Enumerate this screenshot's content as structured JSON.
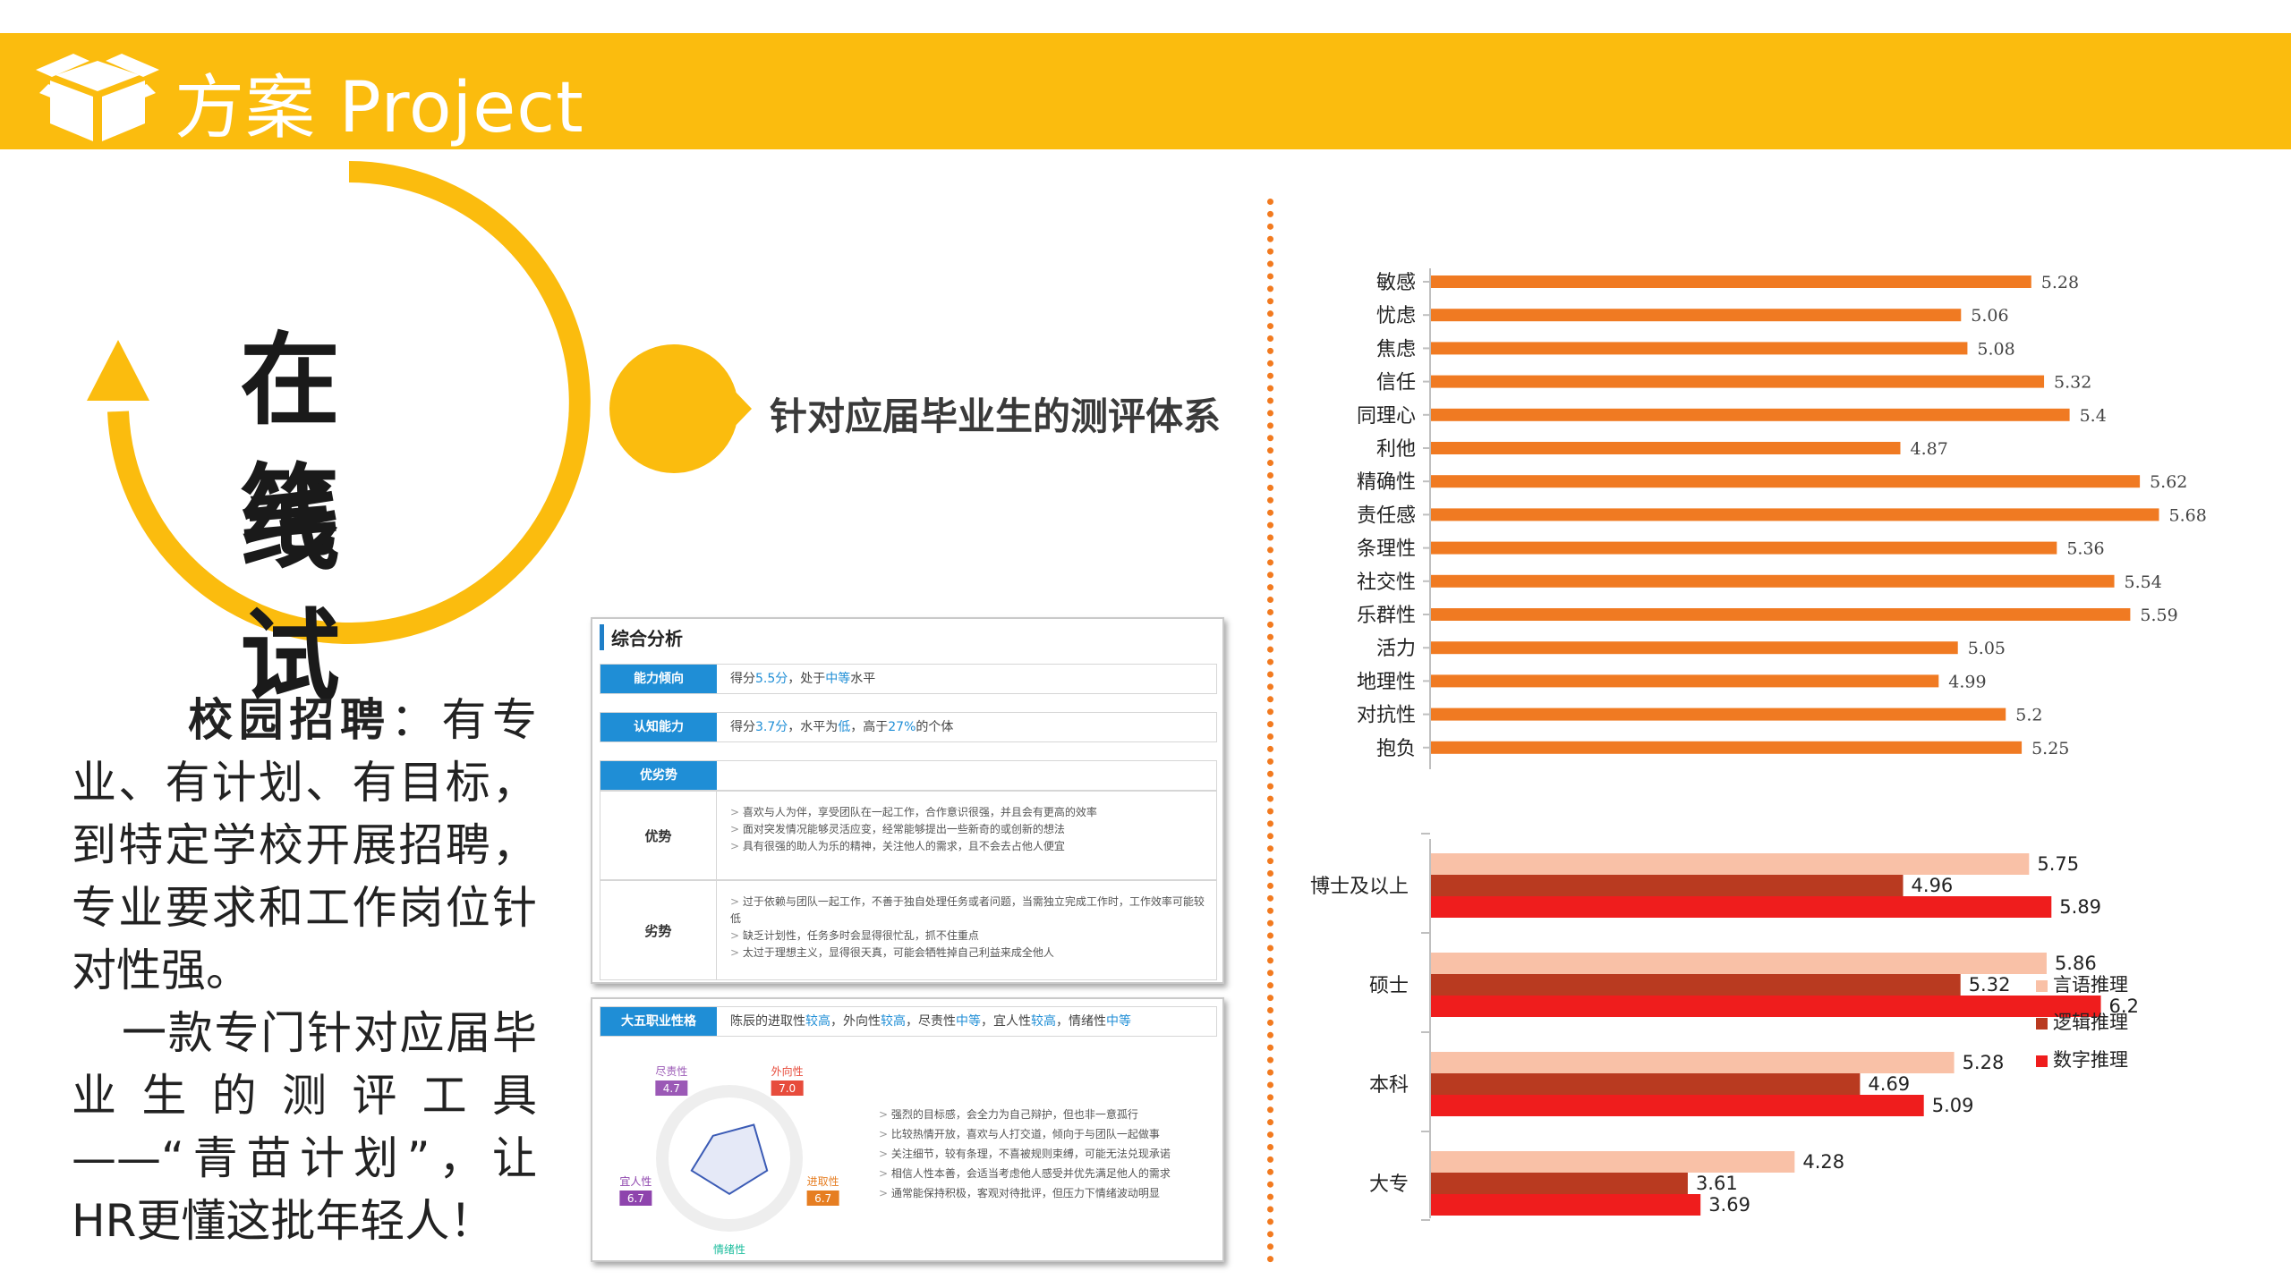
{
  "header": {
    "title": "方案 Project"
  },
  "hero": {
    "line1": "在线",
    "line2": "笔试",
    "bubble_caption": "针对应届毕业生的测评体系"
  },
  "description": {
    "p1_bold": "校园招聘",
    "p1_rest": "：有专业、有计划、有目标，到特定学校开展招聘，专业要求和工作岗位针对性强。",
    "p2": "一款专门针对应届毕业生的测评工具——“青苗计划”，让HR更懂这批年轻人！"
  },
  "report1": {
    "section_title": "综合分析",
    "ability_tag": "能力倾向",
    "ability_pre": "得分",
    "ability_score": "5.5分",
    "ability_mid": "，处于",
    "ability_level": "中等",
    "ability_post": "水平",
    "cognitive_tag": "认知能力",
    "cog_pre": "得分",
    "cog_score": "3.7分",
    "cog_mid": "，水平为",
    "cog_level": "低",
    "cog_mid2": "，高于",
    "cog_pct": "27%",
    "cog_post": "的个体",
    "sw_tag": "优劣势",
    "strength_label": "优势",
    "strengths": [
      "喜欢与人为伴，享受团队在一起工作，合作意识很强，并且会有更高的效率",
      "面对突发情况能够灵活应变，经常能够提出一些新奇的或创新的想法",
      "具有很强的助人为乐的精神，关注他人的需求，且不会去占他人便宜"
    ],
    "weakness_label": "劣势",
    "weaknesses": [
      "过于依赖与团队一起工作，不善于独自处理任务或者问题，当需独立完成工作时，工作效率可能较低",
      "缺乏计划性，任务多时会显得很忙乱，抓不住重点",
      "太过于理想主义，显得很天真，可能会牺牲掉自己利益来成全他人"
    ]
  },
  "report2": {
    "tag": "大五职业性格",
    "summary_parts": [
      "陈辰的进取性",
      "较高",
      "，外向性",
      "较高",
      "，尽责性",
      "中等",
      "，宜人性",
      "较高",
      "，情绪性",
      "中等"
    ],
    "radar": [
      {
        "name": "尽责性",
        "value": "4.7",
        "color": "#9b59b6"
      },
      {
        "name": "外向性",
        "value": "7.0",
        "color": "#e74c3c"
      },
      {
        "name": "进取性",
        "value": "6.7",
        "color": "#e67e22"
      },
      {
        "name": "情绪性",
        "value": "6.0",
        "color": "#1abc9c"
      },
      {
        "name": "宜人性",
        "value": "6.7",
        "color": "#8e44ad"
      }
    ],
    "traits": [
      "强烈的目标感，会全力为自己辩护，但也非一意孤行",
      "比较热情开放，喜欢与人打交道，倾向于与团队一起做事",
      "关注细节，较有条理，不喜被规则束缚，可能无法兑现承诺",
      "相信人性本善，会适当考虑他人感受并优先满足他人的需求",
      "通常能保持积极，客观对待批评，但压力下情绪波动明显"
    ]
  },
  "chart_data": [
    {
      "type": "bar",
      "orientation": "horizontal",
      "categories": [
        "敏感",
        "忧虑",
        "焦虑",
        "信任",
        "同理心",
        "利他",
        "精确性",
        "责任感",
        "条理性",
        "社交性",
        "乐群性",
        "活力",
        "地理性",
        "对抗性",
        "抱负"
      ],
      "values": [
        5.28,
        5.06,
        5.08,
        5.32,
        5.4,
        4.87,
        5.62,
        5.68,
        5.36,
        5.54,
        5.59,
        5.05,
        4.99,
        5.2,
        5.25
      ],
      "color": "#f07a22",
      "xlim": [
        3.4,
        5.9
      ]
    },
    {
      "type": "bar",
      "orientation": "horizontal",
      "categories": [
        "博士及以上",
        "硕士",
        "本科",
        "大专"
      ],
      "series": [
        {
          "name": "言语推理",
          "values": [
            5.75,
            5.86,
            5.28,
            4.28
          ],
          "color": "#f9c1a7"
        },
        {
          "name": "逻辑推理",
          "values": [
            4.96,
            5.32,
            4.69,
            3.61
          ],
          "color": "#b93a20"
        },
        {
          "name": "数字推理",
          "values": [
            5.89,
            6.2,
            5.09,
            3.69
          ],
          "color": "#ef1d1d"
        }
      ],
      "legend": "right",
      "xlim": [
        2.0,
        6.5
      ]
    }
  ]
}
